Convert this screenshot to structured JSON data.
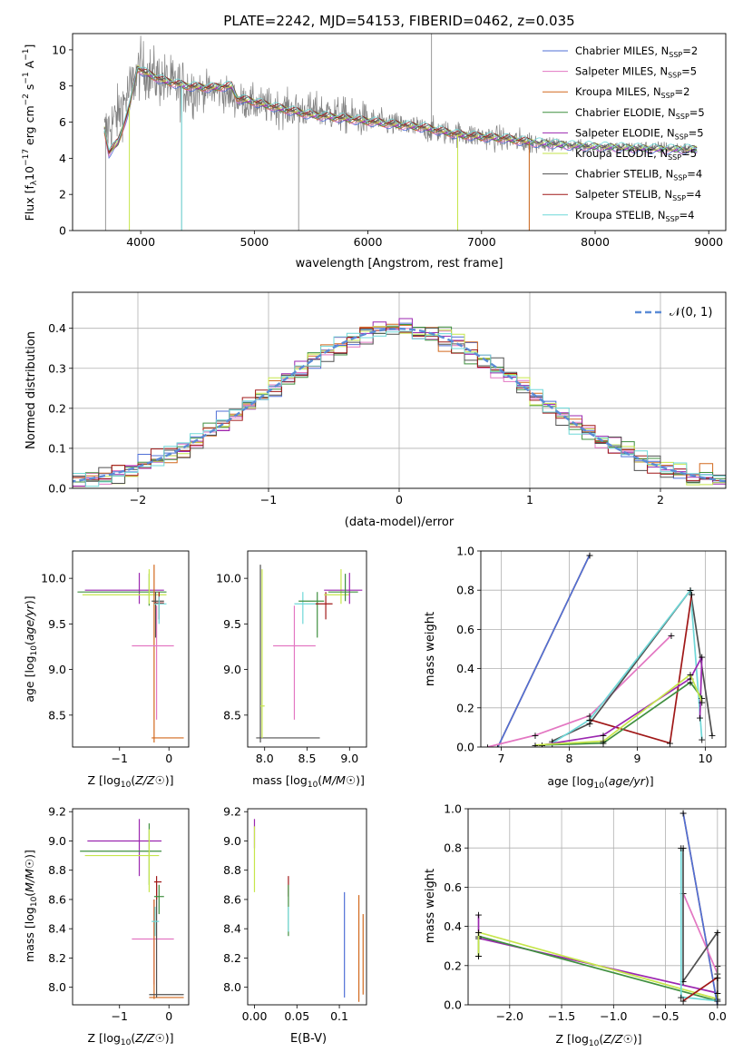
{
  "figure_title": "PLATE=2242, MJD=54153, FIBERID=0462, z=0.035",
  "colors": {
    "Chabrier MILES": "#4f6fd6",
    "Salpeter MILES": "#e377c2",
    "Kroupa MILES": "#d2691e",
    "Chabrier ELODIE": "#3f8f3f",
    "Salpeter ELODIE": "#9b27b0",
    "Kroupa ELODIE": "#c6e64b",
    "Chabrier STELIB": "#505050",
    "Salpeter STELIB": "#a01818",
    "Kroupa STELIB": "#6fd8d8",
    "data": "#808080",
    "gaussian": "#5b8bd6",
    "grid": "#b0b0b0"
  },
  "chart_data": [
    {
      "id": "spectrum",
      "type": "line",
      "xlabel": "wavelength [Angstrom, rest frame]",
      "ylabel": "Flux [f_λ10^-17 erg cm^-2 s^-1 A^-1]",
      "xlim": [
        3400,
        9150
      ],
      "ylim": [
        0,
        10.9
      ],
      "xticks": [
        4000,
        5000,
        6000,
        7000,
        8000,
        9000
      ],
      "yticks": [
        0,
        2,
        4,
        6,
        8,
        10
      ],
      "grid": false,
      "legend_position": "top-right",
      "legend": [
        "Chabrier MILES, N_SSP=2",
        "Salpeter MILES, N_SSP=5",
        "Kroupa MILES, N_SSP=2",
        "Chabrier ELODIE, N_SSP=5",
        "Salpeter ELODIE, N_SSP=5",
        "Kroupa ELODIE, N_SSP=5",
        "Chabrier STELIB, N_SSP=4",
        "Salpeter STELIB, N_SSP=4",
        "Kroupa STELIB, N_SSP=4"
      ],
      "data_continuum": [
        [
          3680,
          5.4
        ],
        [
          3800,
          6.4
        ],
        [
          3950,
          8.4
        ],
        [
          4000,
          9.0
        ],
        [
          4100,
          8.6
        ],
        [
          4300,
          8.0
        ],
        [
          4500,
          7.8
        ],
        [
          4700,
          7.7
        ],
        [
          4860,
          7.2
        ],
        [
          5000,
          7.0
        ],
        [
          5300,
          6.7
        ],
        [
          5600,
          6.6
        ],
        [
          6000,
          6.1
        ],
        [
          6300,
          5.8
        ],
        [
          6600,
          5.5
        ],
        [
          7000,
          5.2
        ],
        [
          7400,
          4.9
        ],
        [
          7800,
          4.7
        ],
        [
          8200,
          4.6
        ],
        [
          8600,
          4.6
        ],
        [
          8900,
          4.5
        ]
      ],
      "model_continuum": [
        [
          3680,
          5.6
        ],
        [
          3720,
          4.3
        ],
        [
          3800,
          4.9
        ],
        [
          3900,
          6.8
        ],
        [
          3970,
          9.0
        ],
        [
          4050,
          8.7
        ],
        [
          4200,
          8.3
        ],
        [
          4400,
          8.0
        ],
        [
          4600,
          7.9
        ],
        [
          4800,
          8.0
        ],
        [
          4850,
          7.3
        ],
        [
          4950,
          7.2
        ],
        [
          5200,
          6.8
        ],
        [
          5500,
          6.4
        ],
        [
          5800,
          6.2
        ],
        [
          6200,
          5.9
        ],
        [
          6500,
          5.7
        ],
        [
          6800,
          5.3
        ],
        [
          7200,
          5.1
        ],
        [
          7420,
          4.9
        ],
        [
          7800,
          4.7
        ],
        [
          8200,
          4.6
        ],
        [
          8600,
          4.5
        ],
        [
          8900,
          4.5
        ]
      ]
    },
    {
      "id": "residuals",
      "type": "line",
      "xlabel": "(data-model)/error",
      "ylabel": "Normed distribution",
      "xlim": [
        -2.5,
        2.5
      ],
      "ylim": [
        0,
        0.49
      ],
      "xticks": [
        -2,
        -1,
        0,
        1,
        2
      ],
      "yticks": [
        0.0,
        0.1,
        0.2,
        0.3,
        0.4
      ],
      "grid": true,
      "legend_position": "top-right",
      "gaussian_label": "𝒩(0, 1)"
    },
    {
      "id": "age-vs-Z",
      "type": "scatter",
      "xlabel": "Z [log10(Z/Z☉)]",
      "ylabel": "age [log10(age/yr)]",
      "xlim": [
        -1.95,
        0.4
      ],
      "ylim": [
        8.15,
        10.3
      ],
      "xticks": [
        -1,
        0
      ],
      "yticks": [
        8.5,
        9.0,
        9.5,
        10.0
      ],
      "grid": false
    },
    {
      "id": "age-vs-mass",
      "type": "scatter",
      "xlabel": "mass [log10(M/M☉)]",
      "ylabel": "",
      "xlim": [
        7.8,
        9.2
      ],
      "ylim": [
        8.15,
        10.3
      ],
      "xticks": [
        8.0,
        8.5,
        9.0
      ],
      "yticks": [
        8.5,
        9.0,
        9.5,
        10.0
      ],
      "grid": false
    },
    {
      "id": "weight-vs-age",
      "type": "line",
      "xlabel": "age [log10(age/yr)]",
      "ylabel": "mass weight",
      "xlim": [
        6.7,
        10.3
      ],
      "ylim": [
        0,
        1.0
      ],
      "xticks": [
        7,
        8,
        9,
        10
      ],
      "yticks": [
        0.0,
        0.2,
        0.4,
        0.6,
        0.8,
        1.0
      ],
      "grid": true,
      "series": [
        {
          "key": "Kroupa MILES",
          "points": [
            [
              6.95,
              0.0
            ],
            [
              8.3,
              0.98
            ]
          ]
        },
        {
          "key": "Chabrier MILES",
          "points": [
            [
              6.95,
              0.0
            ],
            [
              8.3,
              0.98
            ]
          ]
        },
        {
          "key": "Salpeter MILES",
          "points": [
            [
              6.8,
              0.0
            ],
            [
              7.5,
              0.06
            ],
            [
              8.3,
              0.16
            ],
            [
              9.5,
              0.57
            ]
          ]
        },
        {
          "key": "Chabrier STELIB",
          "points": [
            [
              7.75,
              0.03
            ],
            [
              8.3,
              0.12
            ],
            [
              9.78,
              0.8
            ],
            [
              10.1,
              0.06
            ]
          ]
        },
        {
          "key": "Kroupa STELIB",
          "points": [
            [
              7.75,
              0.02
            ],
            [
              8.3,
              0.14
            ],
            [
              9.78,
              0.8
            ],
            [
              9.95,
              0.04
            ]
          ]
        },
        {
          "key": "Salpeter STELIB",
          "points": [
            [
              8.3,
              0.14
            ],
            [
              9.48,
              0.02
            ],
            [
              9.8,
              0.78
            ]
          ]
        },
        {
          "key": "Salpeter ELODIE",
          "points": [
            [
              7.6,
              0.01
            ],
            [
              8.5,
              0.06
            ],
            [
              9.78,
              0.35
            ],
            [
              9.95,
              0.46
            ],
            [
              9.92,
              0.15
            ]
          ]
        },
        {
          "key": "Chabrier ELODIE",
          "points": [
            [
              7.6,
              0.01
            ],
            [
              8.5,
              0.02
            ],
            [
              9.78,
              0.33
            ],
            [
              9.95,
              0.25
            ]
          ]
        },
        {
          "key": "Kroupa ELODIE",
          "points": [
            [
              7.5,
              0.01
            ],
            [
              8.5,
              0.03
            ],
            [
              9.78,
              0.37
            ],
            [
              9.95,
              0.23
            ]
          ]
        }
      ]
    },
    {
      "id": "mass-vs-Z",
      "type": "scatter",
      "xlabel": "Z [log10(Z/Z☉)]",
      "ylabel": "mass [log10(M/M☉)]",
      "xlim": [
        -1.95,
        0.4
      ],
      "ylim": [
        7.88,
        9.22
      ],
      "xticks": [
        -1,
        0
      ],
      "yticks": [
        8.0,
        8.2,
        8.4,
        8.6,
        8.8,
        9.0,
        9.2
      ],
      "grid": false
    },
    {
      "id": "mass-vs-EBV",
      "type": "scatter",
      "xlabel": "E(B-V)",
      "ylabel": "",
      "xlim": [
        -0.008,
        0.132
      ],
      "ylim": [
        7.88,
        9.22
      ],
      "xticks": [
        0.0,
        0.05,
        0.1
      ],
      "yticks": [
        8.0,
        8.2,
        8.4,
        8.6,
        8.8,
        9.0,
        9.2
      ],
      "grid": false
    },
    {
      "id": "weight-vs-Z",
      "type": "line",
      "xlabel": "Z [log10(Z/Z☉)]",
      "ylabel": "mass weight",
      "xlim": [
        -2.4,
        0.08
      ],
      "ylim": [
        0,
        1.0
      ],
      "xticks": [
        -2.0,
        -1.5,
        -1.0,
        -0.5,
        0.0
      ],
      "yticks": [
        0.0,
        0.2,
        0.4,
        0.6,
        0.8,
        1.0
      ],
      "grid": true,
      "series": [
        {
          "key": "Salpeter ELODIE",
          "points": [
            [
              -2.3,
              0.46
            ],
            [
              -2.3,
              0.34
            ],
            [
              0.0,
              0.06
            ],
            [
              0.0,
              0.14
            ]
          ]
        },
        {
          "key": "Chabrier ELODIE",
          "points": [
            [
              -2.3,
              0.25
            ],
            [
              -2.3,
              0.35
            ],
            [
              0.0,
              0.02
            ]
          ]
        },
        {
          "key": "Kroupa ELODIE",
          "points": [
            [
              -2.3,
              0.25
            ],
            [
              -2.3,
              0.37
            ],
            [
              0.0,
              0.03
            ],
            [
              0.0,
              0.2
            ]
          ]
        },
        {
          "key": "Kroupa MILES",
          "points": [
            [
              -0.33,
              0.98
            ],
            [
              0.0,
              0.0
            ]
          ]
        },
        {
          "key": "Chabrier MILES",
          "points": [
            [
              -0.33,
              0.98
            ],
            [
              0.0,
              0.0
            ]
          ]
        },
        {
          "key": "Salpeter MILES",
          "points": [
            [
              -0.33,
              0.57
            ],
            [
              0.0,
              0.16
            ]
          ]
        },
        {
          "key": "Chabrier STELIB",
          "points": [
            [
              -0.33,
              0.8
            ],
            [
              -0.33,
              0.12
            ],
            [
              0.0,
              0.37
            ],
            [
              0.0,
              0.06
            ]
          ]
        },
        {
          "key": "Kroupa STELIB",
          "points": [
            [
              -0.35,
              0.8
            ],
            [
              -0.35,
              0.04
            ],
            [
              0.0,
              0.02
            ]
          ]
        },
        {
          "key": "Salpeter STELIB",
          "points": [
            [
              -0.33,
              0.02
            ],
            [
              0.0,
              0.14
            ]
          ]
        }
      ]
    }
  ]
}
